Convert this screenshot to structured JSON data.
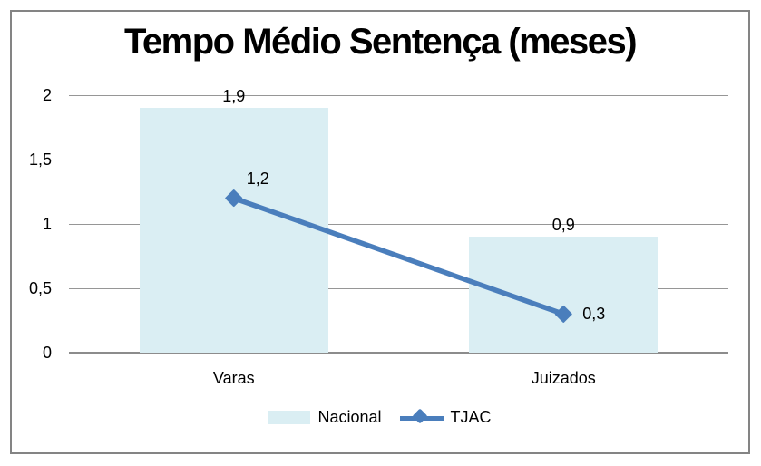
{
  "chart_data": {
    "type": "bar",
    "subtype": "combo-bar-line",
    "title": "Tempo Médio Sentença (meses)",
    "categories": [
      "Varas",
      "Juizados"
    ],
    "series": [
      {
        "name": "Nacional",
        "render": "bar",
        "values": [
          1.9,
          0.9
        ],
        "value_labels": [
          "1,9",
          "0,9"
        ],
        "color": "#daeef3"
      },
      {
        "name": "TJAC",
        "render": "line",
        "marker": "diamond",
        "values": [
          1.2,
          0.3
        ],
        "value_labels": [
          "1,2",
          "0,3"
        ],
        "color": "#4a7ebc"
      }
    ],
    "y_axis": {
      "min": 0,
      "max": 2,
      "step": 0.5,
      "tick_labels": [
        "0",
        "0,5",
        "1",
        "1,5",
        "2"
      ]
    },
    "grid": true,
    "legend_position": "bottom",
    "colors": {
      "gridline": "#969696",
      "axis_line": "#8c8c8c",
      "frame_border": "#848484",
      "text": "#000000",
      "background": "#ffffff"
    }
  }
}
